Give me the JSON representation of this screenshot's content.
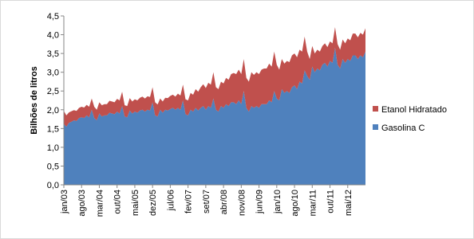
{
  "chart_data": {
    "type": "stacked_area",
    "y_label": "Bilhões de litros",
    "categories": [
      "jan/03",
      null,
      null,
      null,
      null,
      null,
      null,
      "ago/03",
      null,
      null,
      null,
      null,
      null,
      null,
      "mar/04",
      null,
      null,
      null,
      null,
      null,
      null,
      "out/04",
      null,
      null,
      null,
      null,
      null,
      null,
      "mai/05",
      null,
      null,
      null,
      null,
      null,
      null,
      "dez/05",
      null,
      null,
      null,
      null,
      null,
      null,
      "jul/06",
      null,
      null,
      null,
      null,
      null,
      null,
      "fev/07",
      null,
      null,
      null,
      null,
      null,
      null,
      "set/07",
      null,
      null,
      null,
      null,
      null,
      null,
      "abr/08",
      null,
      null,
      null,
      null,
      null,
      null,
      "nov/08",
      null,
      null,
      null,
      null,
      null,
      null,
      "jun/09",
      null,
      null,
      null,
      null,
      null,
      null,
      "jan/10",
      null,
      null,
      null,
      null,
      null,
      null,
      "ago/10",
      null,
      null,
      null,
      null,
      null,
      null,
      "mar/11",
      null,
      null,
      null,
      null,
      null,
      null,
      "out/11",
      null,
      null,
      null,
      null,
      null,
      null,
      "mai/12",
      null,
      null,
      null,
      null,
      null,
      null,
      null
    ],
    "series": [
      {
        "name": "Gasolina C",
        "color": "#4f81bd",
        "values": [
          1.62,
          1.55,
          1.65,
          1.68,
          1.72,
          1.7,
          1.78,
          1.8,
          1.78,
          1.85,
          1.8,
          2.0,
          1.78,
          1.72,
          1.9,
          1.82,
          1.85,
          1.85,
          1.92,
          1.9,
          1.88,
          1.95,
          1.9,
          2.1,
          1.82,
          1.8,
          1.98,
          1.9,
          1.95,
          1.92,
          1.98,
          2.0,
          1.95,
          2.0,
          1.98,
          2.2,
          1.85,
          1.82,
          2.0,
          1.92,
          2.0,
          1.98,
          2.02,
          2.05,
          2.0,
          2.05,
          2.0,
          2.25,
          1.88,
          1.85,
          2.0,
          1.95,
          2.05,
          1.98,
          2.05,
          2.1,
          2.0,
          2.1,
          2.05,
          2.3,
          2.0,
          1.95,
          2.1,
          2.05,
          2.15,
          2.1,
          2.2,
          2.2,
          2.15,
          2.25,
          2.15,
          2.5,
          2.05,
          1.95,
          2.1,
          2.05,
          2.1,
          2.05,
          2.15,
          2.15,
          2.15,
          2.25,
          2.2,
          2.5,
          2.3,
          2.25,
          2.55,
          2.45,
          2.5,
          2.45,
          2.6,
          2.65,
          2.55,
          2.75,
          2.7,
          3.05,
          2.9,
          2.8,
          3.15,
          3.0,
          3.1,
          3.05,
          3.2,
          3.25,
          3.15,
          3.3,
          3.25,
          3.65,
          3.2,
          3.1,
          3.35,
          3.25,
          3.35,
          3.3,
          3.45,
          3.45,
          3.35,
          3.45,
          3.4,
          3.55
        ]
      },
      {
        "name": "Etanol Hidratado",
        "color": "#c0504d",
        "values": [
          0.35,
          0.3,
          0.28,
          0.28,
          0.27,
          0.27,
          0.27,
          0.28,
          0.28,
          0.28,
          0.28,
          0.3,
          0.3,
          0.28,
          0.3,
          0.3,
          0.3,
          0.3,
          0.32,
          0.32,
          0.32,
          0.34,
          0.35,
          0.38,
          0.3,
          0.3,
          0.33,
          0.32,
          0.33,
          0.33,
          0.34,
          0.35,
          0.35,
          0.36,
          0.36,
          0.4,
          0.35,
          0.32,
          0.3,
          0.3,
          0.32,
          0.33,
          0.35,
          0.35,
          0.35,
          0.38,
          0.38,
          0.42,
          0.4,
          0.4,
          0.45,
          0.45,
          0.5,
          0.5,
          0.55,
          0.58,
          0.58,
          0.62,
          0.62,
          0.7,
          0.6,
          0.6,
          0.65,
          0.65,
          0.7,
          0.7,
          0.75,
          0.78,
          0.8,
          0.82,
          0.8,
          0.85,
          0.8,
          0.8,
          0.9,
          0.88,
          0.9,
          0.9,
          0.92,
          0.95,
          0.95,
          0.98,
          0.95,
          1.05,
          0.9,
          0.82,
          0.8,
          0.78,
          0.8,
          0.82,
          0.85,
          0.85,
          0.85,
          0.85,
          0.85,
          0.9,
          0.65,
          0.55,
          0.55,
          0.5,
          0.5,
          0.5,
          0.5,
          0.52,
          0.52,
          0.52,
          0.52,
          0.55,
          0.55,
          0.5,
          0.52,
          0.52,
          0.55,
          0.55,
          0.58,
          0.58,
          0.58,
          0.6,
          0.6,
          0.62
        ]
      }
    ],
    "ylim": [
      0,
      4.5
    ],
    "yticks": [
      {
        "value": 0,
        "label": "0,0"
      },
      {
        "value": 0.5,
        "label": "0,5"
      },
      {
        "value": 1,
        "label": "1,0"
      },
      {
        "value": 1.5,
        "label": "1,5"
      },
      {
        "value": 2,
        "label": "2,0"
      },
      {
        "value": 2.5,
        "label": "2,5"
      },
      {
        "value": 3,
        "label": "3,0"
      },
      {
        "value": 3.5,
        "label": "3,5"
      },
      {
        "value": 4,
        "label": "4,0"
      },
      {
        "value": 4.5,
        "label": "4,5"
      }
    ],
    "legend": "right"
  }
}
